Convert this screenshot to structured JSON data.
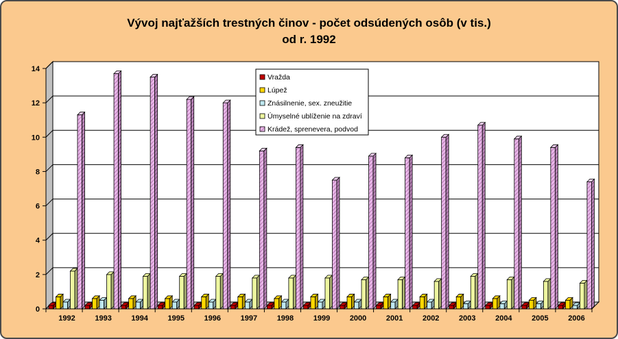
{
  "chart_data": {
    "type": "bar",
    "title_line1": "Vývoj najťažších trestných činov - počet odsúdených osôb (v tis.)",
    "title_line2": "od r. 1992",
    "xlabel": "",
    "ylabel": "",
    "ylim": [
      0,
      14
    ],
    "yticks": [
      "0",
      "2",
      "4",
      "6",
      "8",
      "10",
      "12",
      "14"
    ],
    "grid": true,
    "legend_position": "top-center",
    "categories": [
      "1992",
      "1993",
      "1994",
      "1995",
      "1996",
      "1997",
      "1998",
      "1999",
      "2000",
      "2001",
      "2002",
      "2003",
      "2004",
      "2005",
      "2006"
    ],
    "series": [
      {
        "name": "Vražda",
        "color": "#c00000",
        "values": [
          0.2,
          0.2,
          0.2,
          0.2,
          0.2,
          0.2,
          0.2,
          0.2,
          0.2,
          0.2,
          0.2,
          0.2,
          0.2,
          0.2,
          0.2
        ]
      },
      {
        "name": "Lúpež",
        "color": "#ffd700",
        "values": [
          0.7,
          0.6,
          0.6,
          0.6,
          0.7,
          0.7,
          0.6,
          0.7,
          0.7,
          0.7,
          0.7,
          0.7,
          0.6,
          0.5,
          0.5
        ]
      },
      {
        "name": "Znásilnenie, sex. zneužitie",
        "color": "#bfe8f0",
        "values": [
          0.4,
          0.5,
          0.4,
          0.4,
          0.4,
          0.4,
          0.4,
          0.4,
          0.4,
          0.4,
          0.4,
          0.3,
          0.3,
          0.3,
          0.2
        ]
      },
      {
        "name": "Úmyselné ublíženie na zdraví",
        "color": "#eef7a0",
        "values": [
          2.2,
          2.0,
          1.9,
          1.9,
          1.9,
          1.8,
          1.8,
          1.8,
          1.7,
          1.7,
          1.6,
          1.9,
          1.7,
          1.6,
          1.5
        ]
      },
      {
        "name": "Krádež, sprenevera, podvod",
        "color": "#e8b6e8",
        "values": [
          11.3,
          13.7,
          13.5,
          12.2,
          12.0,
          9.2,
          9.4,
          7.5,
          8.9,
          8.8,
          10.0,
          10.7,
          9.9,
          9.4,
          7.4
        ]
      }
    ]
  }
}
